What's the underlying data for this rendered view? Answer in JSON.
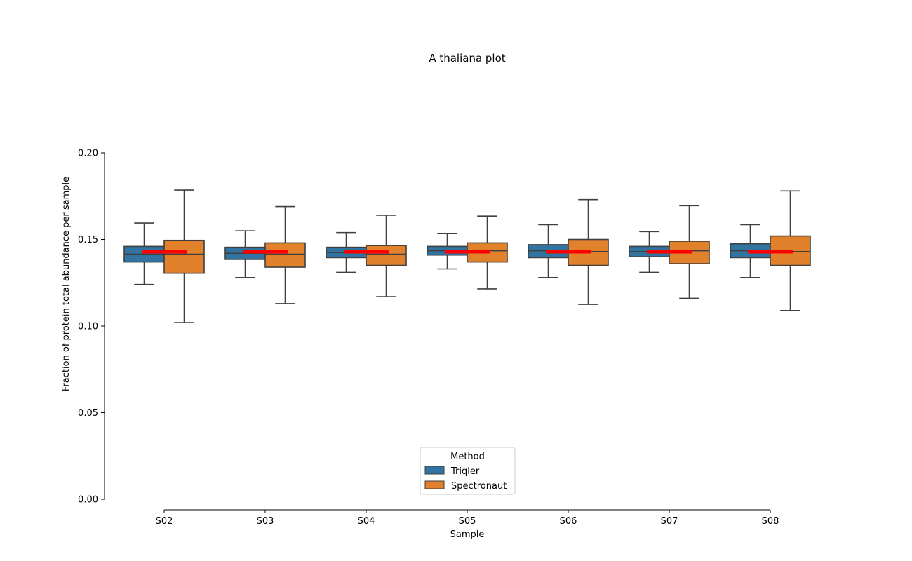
{
  "chart_data": {
    "type": "box",
    "title": "A thaliana plot",
    "xlabel": "Sample",
    "ylabel": "Fraction of protein total abundance per sample",
    "ylim": [
      0,
      0.2
    ],
    "yticks": [
      "0.00",
      "0.05",
      "0.10",
      "0.15",
      "0.20"
    ],
    "categories": [
      "S02",
      "S03",
      "S04",
      "S05",
      "S06",
      "S07",
      "S08"
    ],
    "legend": {
      "title": "Method",
      "placement": "bottom-center"
    },
    "reference_line": {
      "value": 0.1429,
      "color": "#ff0000"
    },
    "series": [
      {
        "name": "Triqler",
        "color": "#3274a1",
        "boxes": [
          {
            "whisker_low": 0.124,
            "q1": 0.137,
            "median": 0.1415,
            "q3": 0.146,
            "whisker_high": 0.1595
          },
          {
            "whisker_low": 0.128,
            "q1": 0.1385,
            "median": 0.142,
            "q3": 0.1455,
            "whisker_high": 0.155
          },
          {
            "whisker_low": 0.131,
            "q1": 0.1395,
            "median": 0.1425,
            "q3": 0.1455,
            "whisker_high": 0.154
          },
          {
            "whisker_low": 0.133,
            "q1": 0.141,
            "median": 0.1435,
            "q3": 0.146,
            "whisker_high": 0.1535
          },
          {
            "whisker_low": 0.128,
            "q1": 0.1395,
            "median": 0.1435,
            "q3": 0.147,
            "whisker_high": 0.1585
          },
          {
            "whisker_low": 0.131,
            "q1": 0.14,
            "median": 0.143,
            "q3": 0.146,
            "whisker_high": 0.1545
          },
          {
            "whisker_low": 0.128,
            "q1": 0.1395,
            "median": 0.1435,
            "q3": 0.1475,
            "whisker_high": 0.1585
          }
        ]
      },
      {
        "name": "Spectronaut",
        "color": "#e1812c",
        "boxes": [
          {
            "whisker_low": 0.102,
            "q1": 0.1305,
            "median": 0.1415,
            "q3": 0.1495,
            "whisker_high": 0.1785
          },
          {
            "whisker_low": 0.113,
            "q1": 0.134,
            "median": 0.1415,
            "q3": 0.148,
            "whisker_high": 0.169
          },
          {
            "whisker_low": 0.117,
            "q1": 0.135,
            "median": 0.1415,
            "q3": 0.1465,
            "whisker_high": 0.164
          },
          {
            "whisker_low": 0.1215,
            "q1": 0.137,
            "median": 0.1435,
            "q3": 0.148,
            "whisker_high": 0.1635
          },
          {
            "whisker_low": 0.1125,
            "q1": 0.135,
            "median": 0.143,
            "q3": 0.15,
            "whisker_high": 0.173
          },
          {
            "whisker_low": 0.116,
            "q1": 0.136,
            "median": 0.1435,
            "q3": 0.149,
            "whisker_high": 0.1695
          },
          {
            "whisker_low": 0.109,
            "q1": 0.135,
            "median": 0.143,
            "q3": 0.152,
            "whisker_high": 0.178
          }
        ]
      }
    ]
  }
}
